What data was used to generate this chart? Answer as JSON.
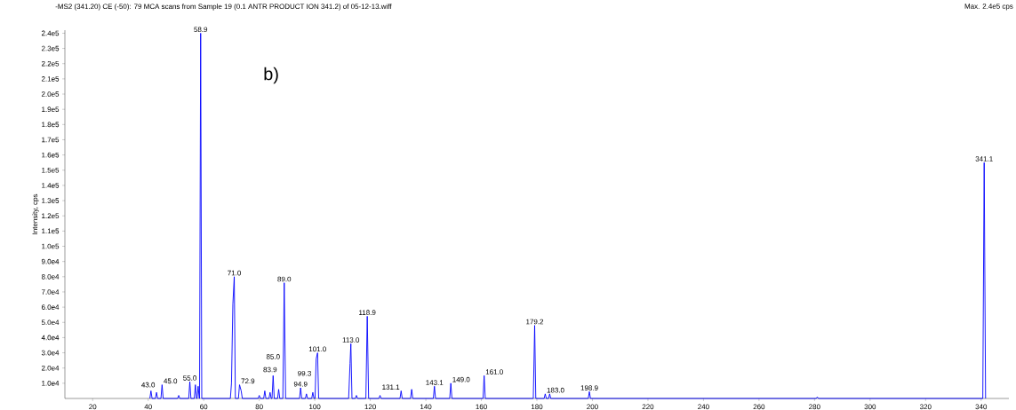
{
  "chart_data": {
    "type": "line",
    "title": "-MS2 (341.20) CE (-50): 79 MCA scans from Sample 19 (0.1 ANTR PRODUCT ION 341.2) of 05-12-13.wiff",
    "subtitle": "Max. 2.4e5 cps",
    "ylabel": "Intensity, cps",
    "x": [
      40.6,
      41,
      41.4,
      42.6,
      43,
      43.4,
      44.6,
      45,
      45.4,
      50.6,
      51,
      51.4,
      54.6,
      55,
      55.4,
      56.6,
      57,
      57.4,
      57.6,
      58,
      58.4,
      58.5,
      58.9,
      59.3,
      69.6,
      70,
      70.5,
      71,
      71.4,
      72.5,
      72.9,
      73.5,
      73.9,
      79.6,
      80,
      80.4,
      81.6,
      82,
      82.4,
      83.5,
      83.9,
      84.3,
      84.6,
      85,
      85.4,
      86.6,
      87,
      87.4,
      88.5,
      89,
      89.5,
      94.5,
      94.9,
      95.3,
      96.6,
      97,
      97.4,
      98.9,
      99.3,
      99.7,
      100.1,
      100.5,
      101,
      101.4,
      112.2,
      112.7,
      113,
      113.4,
      114.6,
      115,
      115.4,
      118.4,
      118.9,
      119.4,
      123.1,
      123.5,
      123.9,
      130.7,
      131.1,
      131.5,
      134.5,
      134.9,
      135.3,
      142.7,
      143.1,
      143.5,
      148.6,
      149,
      149.4,
      160.6,
      161,
      161.4,
      178.7,
      179.2,
      179.6,
      182.6,
      183,
      183.4,
      184.2,
      184.6,
      185,
      198.5,
      198.9,
      199.3,
      280.6,
      281,
      281.4,
      340.6,
      341.1,
      341.6
    ],
    "values": [
      0,
      5000,
      0,
      0,
      4000,
      0,
      0,
      9000,
      0,
      0,
      2000,
      0,
      0,
      11000,
      0,
      0,
      9000,
      0,
      0,
      8000,
      0,
      0,
      240000,
      0,
      0,
      10000,
      62000,
      80000,
      0,
      0,
      9000,
      5000,
      0,
      0,
      2000,
      0,
      0,
      5000,
      0,
      0,
      4000,
      0,
      0,
      15000,
      0,
      0,
      6000,
      0,
      0,
      76000,
      0,
      0,
      7000,
      0,
      0,
      3000,
      0,
      0,
      4000,
      0,
      0,
      26000,
      30000,
      0,
      0,
      23000,
      36000,
      0,
      0,
      2000,
      0,
      0,
      54000,
      0,
      0,
      2000,
      0,
      0,
      5000,
      0,
      0,
      6000,
      0,
      0,
      8000,
      0,
      0,
      10000,
      0,
      0,
      15000,
      0,
      0,
      48000,
      0,
      0,
      3000,
      0,
      0,
      3000,
      0,
      0,
      4500,
      0,
      0,
      1000,
      0,
      0,
      155000,
      0
    ],
    "color": "#0000ff",
    "xlim": [
      10,
      350
    ],
    "ylim": [
      0,
      242000
    ],
    "xticks": [
      20,
      40,
      60,
      80,
      100,
      120,
      140,
      160,
      180,
      200,
      220,
      240,
      260,
      280,
      300,
      320,
      340
    ],
    "yticks": [
      {
        "value": 10000,
        "label": "1.0e4"
      },
      {
        "value": 20000,
        "label": "2.0e4"
      },
      {
        "value": 30000,
        "label": "3.0e4"
      },
      {
        "value": 40000,
        "label": "4.0e4"
      },
      {
        "value": 50000,
        "label": "5.0e4"
      },
      {
        "value": 60000,
        "label": "6.0e4"
      },
      {
        "value": 70000,
        "label": "7.0e4"
      },
      {
        "value": 80000,
        "label": "8.0e4"
      },
      {
        "value": 90000,
        "label": "9.0e4"
      },
      {
        "value": 100000,
        "label": "1.0e5"
      },
      {
        "value": 110000,
        "label": "1.1e5"
      },
      {
        "value": 120000,
        "label": "1.2e5"
      },
      {
        "value": 130000,
        "label": "1.3e5"
      },
      {
        "value": 140000,
        "label": "1.4e5"
      },
      {
        "value": 150000,
        "label": "1.5e5"
      },
      {
        "value": 160000,
        "label": "1.6e5"
      },
      {
        "value": 170000,
        "label": "1.7e5"
      },
      {
        "value": 180000,
        "label": "1.8e5"
      },
      {
        "value": 190000,
        "label": "1.9e5"
      },
      {
        "value": 200000,
        "label": "2.0e5"
      },
      {
        "value": 210000,
        "label": "2.1e5"
      },
      {
        "value": 220000,
        "label": "2.2e5"
      },
      {
        "value": 230000,
        "label": "2.3e5"
      },
      {
        "value": 240000,
        "label": "2.4e5"
      }
    ],
    "annotations": [
      "b)",
      {
        "text": "43.0",
        "x": 43,
        "y": 4000
      },
      {
        "text": "45.0",
        "x": 45,
        "y": 9000
      },
      {
        "text": "55.0",
        "x": 55,
        "y": 11000
      },
      {
        "text": "58.9",
        "x": 58.9,
        "y": 240000
      },
      {
        "text": "71.0",
        "x": 71,
        "y": 80000
      },
      {
        "text": "72.9",
        "x": 72.9,
        "y": 9000
      },
      {
        "text": "83.9",
        "x": 83.9,
        "y": 4000
      },
      {
        "text": "85.0",
        "x": 85,
        "y": 15000
      },
      {
        "text": "89.0",
        "x": 89,
        "y": 76000
      },
      {
        "text": "94.9",
        "x": 94.9,
        "y": 7000
      },
      {
        "text": "99.3",
        "x": 99.3,
        "y": 4000
      },
      {
        "text": "101.0",
        "x": 101,
        "y": 30000
      },
      {
        "text": "113.0",
        "x": 113,
        "y": 36000
      },
      {
        "text": "118.9",
        "x": 118.9,
        "y": 54000
      },
      {
        "text": "131.1",
        "x": 131.1,
        "y": 5000
      },
      {
        "text": "143.1",
        "x": 143.1,
        "y": 8000
      },
      {
        "text": "149.0",
        "x": 149,
        "y": 10000
      },
      {
        "text": "161.0",
        "x": 161,
        "y": 15000
      },
      {
        "text": "179.2",
        "x": 179.2,
        "y": 48000
      },
      {
        "text": "183.0",
        "x": 183,
        "y": 3000
      },
      {
        "text": "198.9",
        "x": 198.9,
        "y": 4500
      },
      {
        "text": "341.1",
        "x": 341.1,
        "y": 155000
      }
    ]
  }
}
